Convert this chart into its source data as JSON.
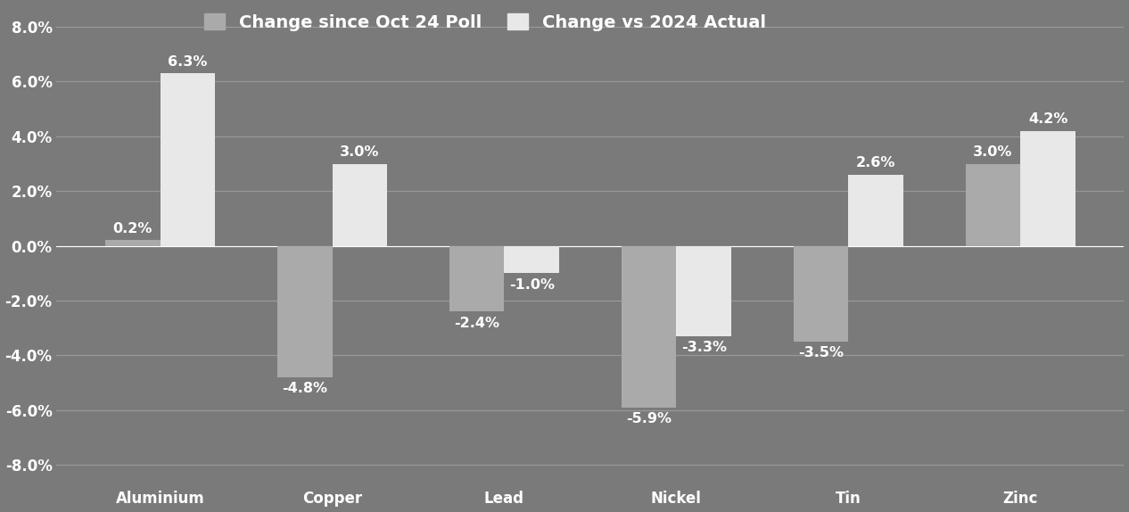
{
  "categories": [
    "Aluminium",
    "Copper",
    "Lead",
    "Nickel",
    "Tin",
    "Zinc"
  ],
  "series1_label": "Change since Oct 24 Poll",
  "series2_label": "Change vs 2024 Actual",
  "series1_values": [
    0.2,
    -4.8,
    -2.4,
    -5.9,
    -3.5,
    3.0
  ],
  "series2_values": [
    6.3,
    3.0,
    -1.0,
    -3.3,
    2.6,
    4.2
  ],
  "series1_color": "#aaaaaa",
  "series2_color": "#e8e8e8",
  "background_color": "#7a7a7a",
  "plot_bg_color": "#7a7a7a",
  "text_color": "#ffffff",
  "grid_color": "#999999",
  "ylim": [
    -8.8,
    8.8
  ],
  "yticks": [
    -8.0,
    -6.0,
    -4.0,
    -2.0,
    0.0,
    2.0,
    4.0,
    6.0,
    8.0
  ],
  "bar_width": 0.32,
  "label_fontsize": 11.5,
  "tick_fontsize": 12,
  "legend_fontsize": 14
}
